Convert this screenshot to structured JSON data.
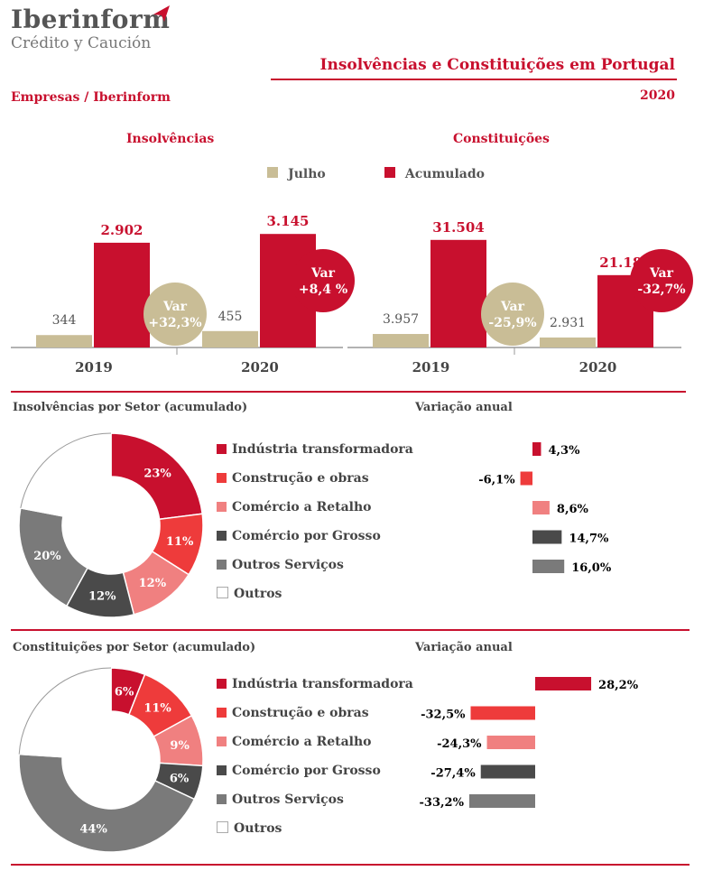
{
  "brand": {
    "name": "Iberinform",
    "sub": "Crédito y Caución"
  },
  "title": "Insolvências e Constituições em  Portugal",
  "subtitle": "Empresas / Iberinform",
  "year": "2020",
  "colors": {
    "accent": "#c8102e",
    "julho": "#c9bd96"
  },
  "legend": {
    "julho": "Julho",
    "acumulado": "Acumulado"
  },
  "chart_data": [
    {
      "type": "bar",
      "title": "Insolvências",
      "categories": [
        "2019",
        "2020"
      ],
      "series": [
        {
          "name": "Julho",
          "values": [
            344,
            455
          ],
          "labels": [
            "344",
            "455"
          ]
        },
        {
          "name": "Acumulado",
          "values": [
            2902,
            3145
          ],
          "labels": [
            "2.902",
            "3.145"
          ]
        }
      ],
      "ylim": [
        0,
        3500
      ],
      "badges": [
        {
          "line1": "Var",
          "line2": "+32,3%"
        },
        {
          "line1": "Var",
          "line2": "+8,4 %"
        }
      ]
    },
    {
      "type": "bar",
      "title": "Constituições",
      "categories": [
        "2019",
        "2020"
      ],
      "series": [
        {
          "name": "Julho",
          "values": [
            3957,
            2931
          ],
          "labels": [
            "3.957",
            "2.931"
          ]
        },
        {
          "name": "Acumulado",
          "values": [
            31504,
            21187
          ],
          "labels": [
            "31.504",
            "21.187"
          ]
        }
      ],
      "ylim": [
        0,
        37000
      ],
      "badges": [
        {
          "line1": "Var",
          "line2": "-25,9%"
        },
        {
          "line1": "Var",
          "line2": "-32,7%"
        }
      ]
    },
    {
      "type": "pie",
      "title": "Insolvências por Setor (acumulado)",
      "categories": [
        "Indústria transformadora",
        "Construção e obras",
        "Comércio a Retalho",
        "Comércio por Grosso",
        "Outros Serviços",
        "Outros"
      ],
      "values": [
        23,
        11,
        12,
        12,
        20,
        22
      ],
      "labels": [
        "23%",
        "11%",
        "12%",
        "12%",
        "20%",
        ""
      ],
      "colors": [
        "#c8102e",
        "#ee3b3b",
        "#f08080",
        "#4a4a4a",
        "#7a7a7a",
        "#ffffff"
      ]
    },
    {
      "type": "bar",
      "title": "Variação anual",
      "categories": [
        "Indústria transformadora",
        "Construção e obras",
        "Comércio a Retalho",
        "Comércio por Grosso",
        "Outros Serviços"
      ],
      "values": [
        4.3,
        -6.1,
        8.6,
        14.7,
        16.0
      ],
      "labels": [
        "4,3%",
        "-6,1%",
        "8,6%",
        "14,7%",
        "16,0%"
      ]
    },
    {
      "type": "pie",
      "title": "Constituições por Setor (acumulado)",
      "categories": [
        "Indústria transformadora",
        "Construção e obras",
        "Comércio a Retalho",
        "Comércio por Grosso",
        "Outros Serviços",
        "Outros"
      ],
      "values": [
        6,
        11,
        9,
        6,
        44,
        24
      ],
      "labels": [
        "6%",
        "11%",
        "9%",
        "6%",
        "44%",
        ""
      ],
      "colors": [
        "#c8102e",
        "#ee3b3b",
        "#f08080",
        "#4a4a4a",
        "#7a7a7a",
        "#ffffff"
      ]
    },
    {
      "type": "bar",
      "title": "Variação anual",
      "categories": [
        "Indústria transformadora",
        "Construção e obras",
        "Comércio a Retalho",
        "Comércio por Grosso",
        "Outros Serviços"
      ],
      "values": [
        28.2,
        -32.5,
        -24.3,
        -27.4,
        -33.2
      ],
      "labels": [
        "28,2%",
        "-32,5%",
        "-24,3%",
        "-27,4%",
        "-33,2%"
      ]
    }
  ]
}
